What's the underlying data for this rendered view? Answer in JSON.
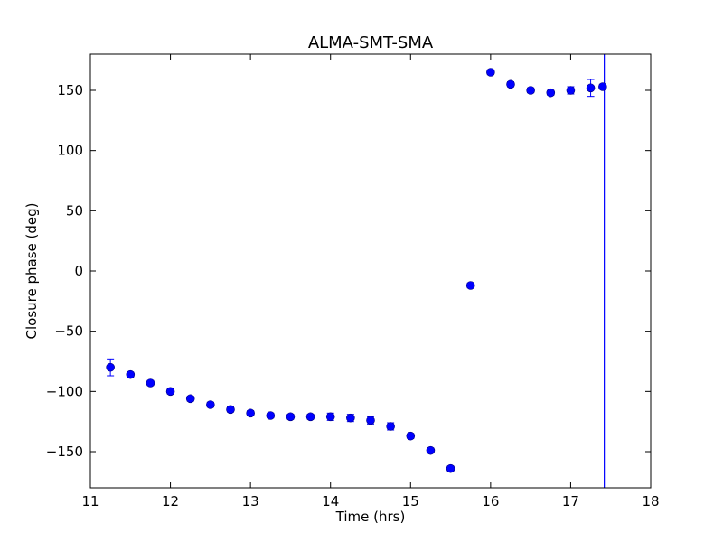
{
  "chart_data": {
    "type": "scatter",
    "title": "ALMA-SMT-SMA",
    "xlabel": "Time (hrs)",
    "ylabel": "Closure phase (deg)",
    "xlim": [
      11,
      18
    ],
    "ylim": [
      -180,
      180
    ],
    "xticks": [
      11,
      12,
      13,
      14,
      15,
      16,
      17,
      18
    ],
    "yticks": [
      -150,
      -100,
      -50,
      0,
      50,
      100,
      150
    ],
    "ytick_labels": [
      "−150",
      "−100",
      "−50",
      "0",
      "50",
      "100",
      "150"
    ],
    "grid": false,
    "marker_color": "#0000ff",
    "vertical_line": {
      "x": 17.42,
      "color": "#0000ff"
    },
    "series": [
      {
        "points": [
          {
            "x": 11.25,
            "y": -80,
            "err": 7
          },
          {
            "x": 11.5,
            "y": -86,
            "err": 2
          },
          {
            "x": 11.75,
            "y": -93,
            "err": 2
          },
          {
            "x": 12.0,
            "y": -100,
            "err": 2
          },
          {
            "x": 12.25,
            "y": -106,
            "err": 2
          },
          {
            "x": 12.5,
            "y": -111,
            "err": 2
          },
          {
            "x": 12.75,
            "y": -115,
            "err": 2
          },
          {
            "x": 13.0,
            "y": -118,
            "err": 2
          },
          {
            "x": 13.25,
            "y": -120,
            "err": 2
          },
          {
            "x": 13.5,
            "y": -121,
            "err": 2
          },
          {
            "x": 13.75,
            "y": -121,
            "err": 2
          },
          {
            "x": 14.0,
            "y": -121,
            "err": 3
          },
          {
            "x": 14.25,
            "y": -122,
            "err": 3
          },
          {
            "x": 14.5,
            "y": -124,
            "err": 3
          },
          {
            "x": 14.75,
            "y": -129,
            "err": 3
          },
          {
            "x": 15.0,
            "y": -137,
            "err": 2
          },
          {
            "x": 15.25,
            "y": -149,
            "err": 2
          },
          {
            "x": 15.5,
            "y": -164,
            "err": 2
          },
          {
            "x": 15.75,
            "y": -12,
            "err": 2
          },
          {
            "x": 16.0,
            "y": 165,
            "err": 2
          },
          {
            "x": 16.25,
            "y": 155,
            "err": 2
          },
          {
            "x": 16.5,
            "y": 150,
            "err": 2
          },
          {
            "x": 16.75,
            "y": 148,
            "err": 2
          },
          {
            "x": 17.0,
            "y": 150,
            "err": 3
          },
          {
            "x": 17.25,
            "y": 152,
            "err": 7
          },
          {
            "x": 17.4,
            "y": 153,
            "err": 2
          }
        ]
      }
    ]
  }
}
